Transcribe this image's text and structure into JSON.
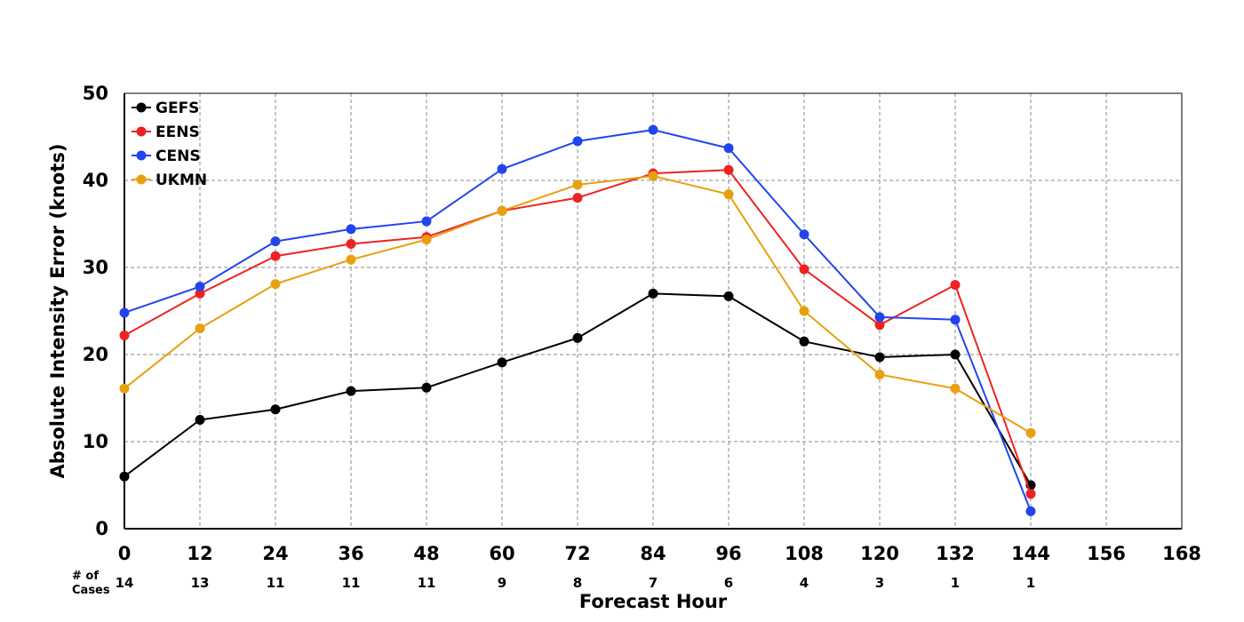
{
  "chart_data": {
    "type": "line",
    "title": "",
    "xlabel": "Forecast Hour",
    "ylabel": "Absolute Intensity Error (knots)",
    "xlim": [
      0,
      168
    ],
    "ylim": [
      0,
      50
    ],
    "xticks": [
      0,
      12,
      24,
      36,
      48,
      60,
      72,
      84,
      96,
      108,
      120,
      132,
      144,
      156,
      168
    ],
    "yticks": [
      0,
      10,
      20,
      30,
      40,
      50
    ],
    "grid": true,
    "legend_position": "top-left",
    "cases_header": [
      "# of",
      "Cases"
    ],
    "cases": [
      {
        "x": 0,
        "n": "14"
      },
      {
        "x": 12,
        "n": "13"
      },
      {
        "x": 24,
        "n": "11"
      },
      {
        "x": 36,
        "n": "11"
      },
      {
        "x": 48,
        "n": "11"
      },
      {
        "x": 60,
        "n": "9"
      },
      {
        "x": 72,
        "n": "8"
      },
      {
        "x": 84,
        "n": "7"
      },
      {
        "x": 96,
        "n": "6"
      },
      {
        "x": 108,
        "n": "4"
      },
      {
        "x": 120,
        "n": "3"
      },
      {
        "x": 132,
        "n": "1"
      },
      {
        "x": 144,
        "n": "1"
      }
    ],
    "x": [
      0,
      12,
      24,
      36,
      48,
      60,
      72,
      84,
      96,
      108,
      120,
      132,
      144
    ],
    "series": [
      {
        "name": "GEFS",
        "color": "#000000",
        "values": [
          6.0,
          12.5,
          13.7,
          15.8,
          16.2,
          19.1,
          21.9,
          27.0,
          26.7,
          21.5,
          19.7,
          20.0,
          5.0
        ]
      },
      {
        "name": "EENS",
        "color": "#ee2222",
        "values": [
          22.2,
          27.0,
          31.3,
          32.7,
          33.5,
          36.5,
          38.0,
          40.8,
          41.2,
          29.8,
          23.4,
          28.0,
          4.0
        ]
      },
      {
        "name": "CENS",
        "color": "#2244ee",
        "values": [
          24.8,
          27.8,
          33.0,
          34.4,
          35.3,
          41.3,
          44.5,
          45.8,
          43.7,
          33.8,
          24.3,
          24.0,
          2.0
        ]
      },
      {
        "name": "UKMN",
        "color": "#e8a010",
        "values": [
          16.1,
          23.0,
          28.1,
          30.9,
          33.2,
          36.5,
          39.5,
          40.5,
          38.4,
          25.0,
          17.7,
          16.1,
          11.0
        ]
      }
    ]
  }
}
